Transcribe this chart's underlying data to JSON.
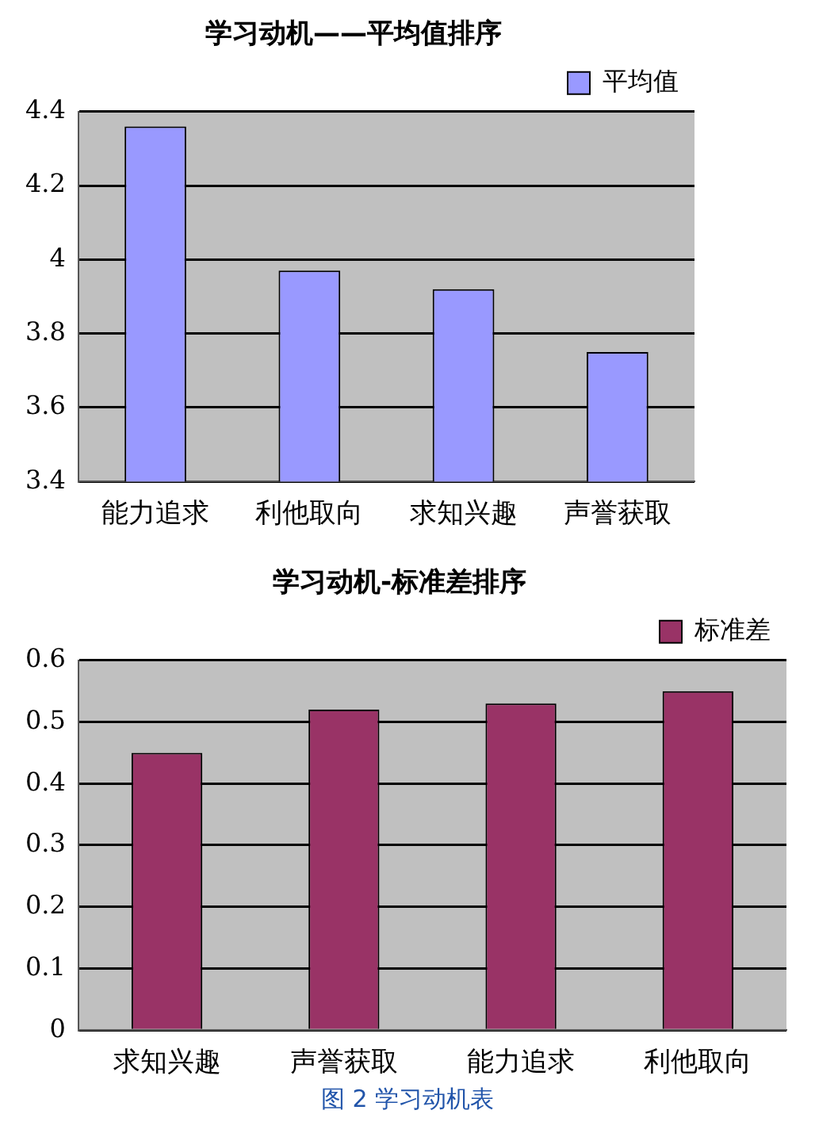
{
  "chart_data": [
    {
      "type": "bar",
      "title": "学习动机——平均值排序",
      "categories": [
        "能力追求",
        "利他取向",
        "求知兴趣",
        "声誉获取"
      ],
      "series": [
        {
          "name": "平均值",
          "color": "#9999ff",
          "values": [
            4.36,
            3.97,
            3.92,
            3.75
          ]
        }
      ],
      "ylim": [
        3.4,
        4.4
      ],
      "yticks": [
        3.4,
        3.6,
        3.8,
        4,
        4.2,
        4.4
      ],
      "grid": "y",
      "legend": "top right"
    },
    {
      "type": "bar",
      "title": "学习动机-标准差排序",
      "categories": [
        "求知兴趣",
        "声誉获取",
        "能力追求",
        "利他取向"
      ],
      "series": [
        {
          "name": "标准差",
          "color": "#993366",
          "values": [
            0.45,
            0.52,
            0.53,
            0.55
          ]
        }
      ],
      "ylim": [
        0,
        0.6
      ],
      "yticks": [
        0,
        0.1,
        0.2,
        0.3,
        0.4,
        0.5,
        0.6
      ],
      "grid": "y",
      "legend": "top right",
      "annotations": [
        "图 2  学习动机表"
      ]
    }
  ]
}
